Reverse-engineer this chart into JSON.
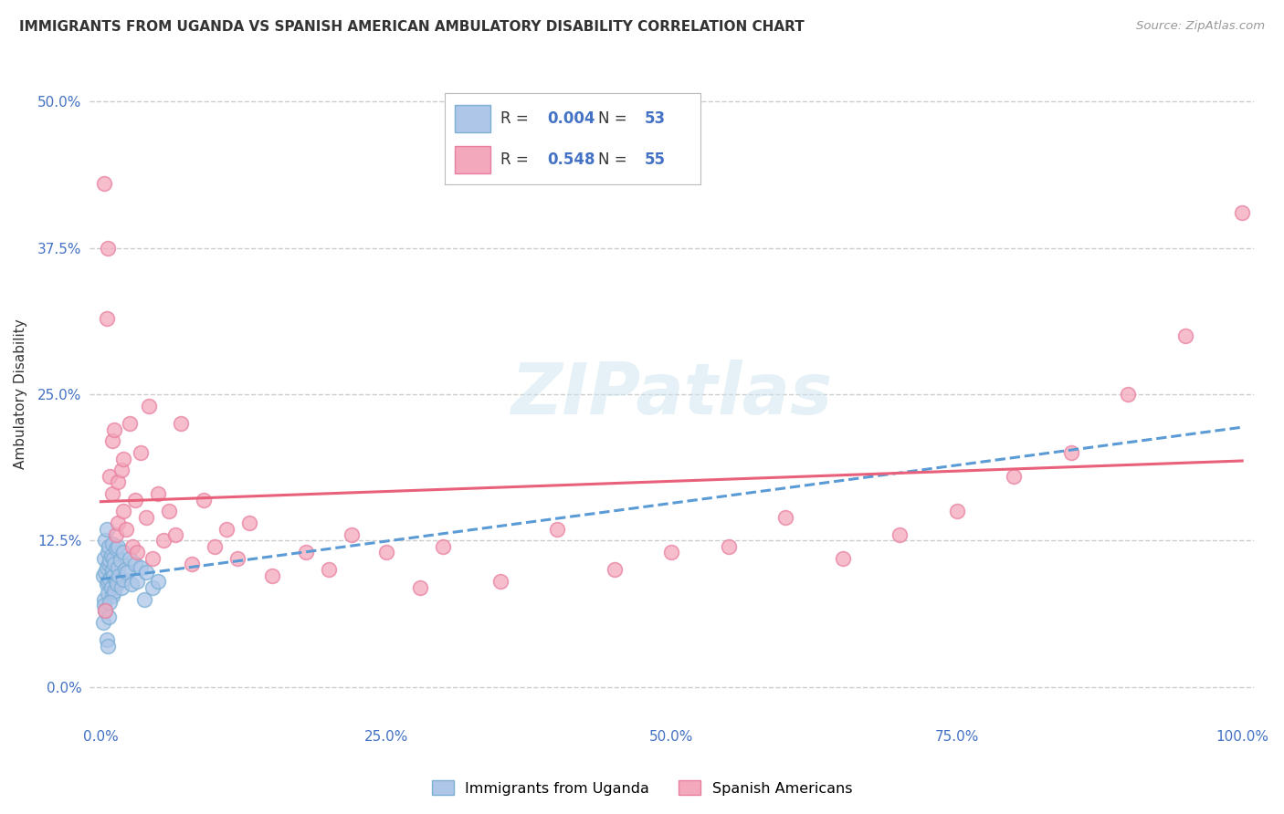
{
  "title": "IMMIGRANTS FROM UGANDA VS SPANISH AMERICAN AMBULATORY DISABILITY CORRELATION CHART",
  "source": "Source: ZipAtlas.com",
  "ylabel": "Ambulatory Disability",
  "watermark": "ZIPatlas",
  "legend_uganda": "Immigrants from Uganda",
  "legend_spanish": "Spanish Americans",
  "uganda_R": "0.004",
  "uganda_N": "53",
  "spanish_R": "0.548",
  "spanish_N": "55",
  "xlim": [
    -1,
    101
  ],
  "ylim": [
    -3,
    53
  ],
  "xticks": [
    0,
    25,
    50,
    75,
    100
  ],
  "xtick_labels": [
    "0.0%",
    "25.0%",
    "50.0%",
    "75.0%",
    "100.0%"
  ],
  "yticks": [
    0,
    12.5,
    25.0,
    37.5,
    50.0
  ],
  "ytick_labels": [
    "0.0%",
    "12.5%",
    "25.0%",
    "37.5%",
    "50.0%"
  ],
  "uganda_color": "#aec6e8",
  "uganda_edge": "#7bafd4",
  "spanish_color": "#f4a8bc",
  "spanish_edge": "#e87fa0",
  "line_uganda_color": "#5b9bd5",
  "line_spanish_color": "#e8607a",
  "grid_color": "#cccccc",
  "bg_color": "#ffffff",
  "uganda_x": [
    0.2,
    0.3,
    0.3,
    0.4,
    0.4,
    0.5,
    0.5,
    0.5,
    0.6,
    0.6,
    0.6,
    0.7,
    0.7,
    0.8,
    0.8,
    0.9,
    0.9,
    1.0,
    1.0,
    1.0,
    1.0,
    1.1,
    1.1,
    1.2,
    1.2,
    1.3,
    1.3,
    1.4,
    1.5,
    1.5,
    1.6,
    1.7,
    1.8,
    2.0,
    2.0,
    2.1,
    2.3,
    2.5,
    2.7,
    3.0,
    3.2,
    3.5,
    3.8,
    4.0,
    4.5,
    5.0,
    0.2,
    0.3,
    0.4,
    0.5,
    0.6,
    0.7,
    0.8
  ],
  "uganda_y": [
    9.5,
    11.0,
    7.5,
    9.8,
    12.5,
    10.2,
    8.8,
    13.5,
    9.0,
    11.5,
    8.0,
    10.5,
    12.0,
    9.2,
    10.8,
    8.5,
    11.2,
    9.8,
    10.0,
    12.2,
    7.8,
    9.5,
    11.0,
    8.2,
    10.5,
    9.0,
    11.8,
    8.8,
    10.2,
    12.0,
    9.5,
    10.8,
    8.5,
    9.2,
    11.5,
    10.0,
    9.8,
    11.0,
    8.8,
    10.5,
    9.0,
    10.2,
    7.5,
    9.8,
    8.5,
    9.0,
    5.5,
    7.0,
    6.5,
    4.0,
    3.5,
    6.0,
    7.2
  ],
  "spanish_x": [
    0.3,
    0.5,
    0.6,
    0.8,
    1.0,
    1.0,
    1.2,
    1.3,
    1.5,
    1.5,
    1.8,
    2.0,
    2.0,
    2.2,
    2.5,
    2.8,
    3.0,
    3.2,
    3.5,
    4.0,
    4.2,
    4.5,
    5.0,
    5.5,
    6.0,
    6.5,
    7.0,
    8.0,
    9.0,
    10.0,
    11.0,
    12.0,
    13.0,
    15.0,
    18.0,
    20.0,
    22.0,
    25.0,
    28.0,
    30.0,
    35.0,
    40.0,
    45.0,
    50.0,
    55.0,
    60.0,
    65.0,
    70.0,
    75.0,
    80.0,
    85.0,
    90.0,
    95.0,
    100.0,
    0.4
  ],
  "spanish_y": [
    43.0,
    31.5,
    37.5,
    18.0,
    21.0,
    16.5,
    22.0,
    13.0,
    17.5,
    14.0,
    18.5,
    15.0,
    19.5,
    13.5,
    22.5,
    12.0,
    16.0,
    11.5,
    20.0,
    14.5,
    24.0,
    11.0,
    16.5,
    12.5,
    15.0,
    13.0,
    22.5,
    10.5,
    16.0,
    12.0,
    13.5,
    11.0,
    14.0,
    9.5,
    11.5,
    10.0,
    13.0,
    11.5,
    8.5,
    12.0,
    9.0,
    13.5,
    10.0,
    11.5,
    12.0,
    14.5,
    11.0,
    13.0,
    15.0,
    18.0,
    20.0,
    25.0,
    30.0,
    40.5,
    6.5
  ]
}
